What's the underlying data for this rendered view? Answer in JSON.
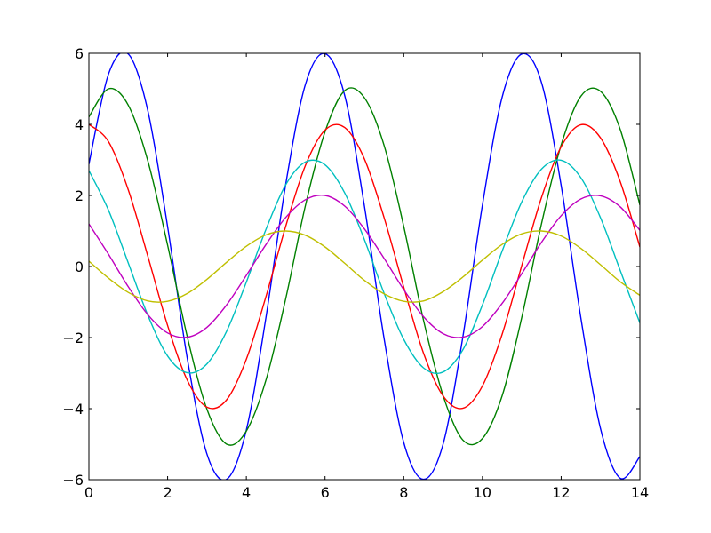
{
  "chart_data": {
    "type": "line",
    "title": "",
    "xlabel": "",
    "ylabel": "",
    "xlim": [
      0,
      14
    ],
    "ylim": [
      -6,
      6
    ],
    "xticks": [
      0,
      2,
      4,
      6,
      8,
      10,
      12,
      14
    ],
    "yticks": [
      -6,
      -4,
      -2,
      0,
      2,
      4,
      6
    ],
    "xtick_labels": [
      "0",
      "2",
      "4",
      "6",
      "8",
      "10",
      "12",
      "14"
    ],
    "ytick_labels": [
      "−6",
      "−4",
      "−2",
      "0",
      "2",
      "4",
      "6"
    ],
    "grid": false,
    "legend": "none",
    "series": [
      {
        "color": "#0000ff",
        "x": [
          0,
          0.5,
          1,
          1.5,
          2,
          2.5,
          3,
          3.5,
          4,
          4.5,
          5,
          5.5,
          6,
          6.5,
          7,
          7.5,
          8,
          8.5,
          9,
          9.5,
          10,
          10.5,
          11,
          11.5,
          12,
          12.5,
          13,
          13.5,
          14
        ],
        "y": [
          2.88,
          5.42,
          5.98,
          4.37,
          1.12,
          -2.59,
          -5.28,
          -5.99,
          -4.6,
          -1.42,
          2.31,
          5.12,
          5.99,
          4.81,
          1.71,
          -2.02,
          -4.95,
          -5.99,
          -5.0,
          -2.0,
          1.73,
          4.76,
          5.98,
          5.18,
          2.28,
          -1.44,
          -4.56,
          -5.96,
          -5.35
        ],
        "y_summary": {
          "min": -6.0,
          "max": 6.0
        }
      },
      {
        "color": "#008000",
        "x": [
          0,
          0.5,
          1,
          1.5,
          2,
          2.5,
          3,
          3.5,
          4,
          4.5,
          5,
          5.5,
          6,
          6.5,
          7,
          7.5,
          8,
          8.5,
          9,
          9.5,
          10,
          10.5,
          11,
          11.5,
          12,
          12.5,
          13,
          13.5,
          14
        ],
        "y": [
          4.21,
          5.0,
          4.54,
          2.96,
          0.6,
          -1.98,
          -4.02,
          -5.0,
          -4.63,
          -3.19,
          -0.91,
          1.71,
          3.79,
          4.95,
          4.75,
          3.41,
          1.13,
          -1.5,
          -3.63,
          -4.88,
          -4.84,
          -3.64,
          -1.43,
          1.2,
          3.42,
          4.79,
          4.93,
          3.86,
          1.73
        ],
        "y_summary": {
          "min": -5.0,
          "max": 5.0
        }
      },
      {
        "color": "#ff0000",
        "x": [
          0,
          0.5,
          1,
          1.5,
          2,
          2.5,
          3,
          3.5,
          4,
          4.5,
          5,
          5.5,
          6,
          6.5,
          7,
          7.5,
          8,
          8.5,
          9,
          9.5,
          10,
          10.5,
          11,
          11.5,
          12,
          12.5,
          13,
          13.5,
          14
        ],
        "y": [
          4.0,
          3.51,
          2.16,
          0.28,
          -1.66,
          -3.2,
          -3.96,
          -3.75,
          -2.61,
          -0.84,
          1.13,
          2.84,
          3.84,
          3.91,
          3.03,
          1.38,
          -0.58,
          -2.43,
          -3.64,
          -3.99,
          -3.36,
          -1.91,
          0.03,
          1.94,
          3.37,
          3.99,
          3.62,
          2.39,
          0.55
        ],
        "y_summary": {
          "min": -4.0,
          "max": 4.0
        }
      },
      {
        "color": "#00bfbf",
        "x": [
          0,
          0.5,
          1,
          1.5,
          2,
          2.5,
          3,
          3.5,
          4,
          4.5,
          5,
          5.5,
          6,
          6.5,
          7,
          7.5,
          8,
          8.5,
          9,
          9.5,
          10,
          10.5,
          11,
          11.5,
          12,
          12.5,
          13,
          13.5,
          14
        ],
        "y": [
          2.7,
          1.58,
          0.1,
          -1.38,
          -2.52,
          -2.99,
          -2.74,
          -1.82,
          -0.44,
          1.05,
          2.3,
          2.94,
          2.86,
          2.07,
          0.76,
          -0.75,
          -2.05,
          -2.85,
          -2.97,
          -2.35,
          -1.08,
          0.43,
          1.82,
          2.74,
          2.99,
          2.5,
          1.37,
          -0.11,
          -1.59
        ],
        "y_summary": {
          "min": -3.0,
          "max": 3.0
        }
      },
      {
        "color": "#bf00bf",
        "x": [
          0,
          0.5,
          1,
          1.5,
          2,
          2.5,
          3,
          3.5,
          4,
          4.5,
          5,
          5.5,
          6,
          6.5,
          7,
          7.5,
          8,
          8.5,
          9,
          9.5,
          10,
          10.5,
          11,
          11.5,
          12,
          12.5,
          13,
          13.5,
          14
        ],
        "y": [
          1.2,
          0.34,
          -0.57,
          -1.36,
          -1.87,
          -1.99,
          -1.71,
          -1.08,
          -0.25,
          0.62,
          1.38,
          1.88,
          2.0,
          1.7,
          1.06,
          0.23,
          -0.65,
          -1.41,
          -1.89,
          -1.99,
          -1.69,
          -1.04,
          -0.2,
          0.68,
          1.43,
          1.9,
          1.99,
          1.68,
          1.02
        ],
        "y_summary": {
          "min": -2.0,
          "max": 2.0
        }
      },
      {
        "color": "#bfbf00",
        "x": [
          0,
          0.5,
          1,
          1.5,
          2,
          2.5,
          3,
          3.5,
          4,
          4.5,
          5,
          5.5,
          6,
          6.5,
          7,
          7.5,
          8,
          8.5,
          9,
          9.5,
          10,
          10.5,
          11,
          11.5,
          12,
          12.5,
          13,
          13.5,
          14
        ],
        "y": [
          0.15,
          -0.33,
          -0.73,
          -0.97,
          -0.98,
          -0.76,
          -0.36,
          0.12,
          0.57,
          0.89,
          1.0,
          0.88,
          0.55,
          0.09,
          -0.39,
          -0.77,
          -0.98,
          -0.97,
          -0.71,
          -0.3,
          0.18,
          0.62,
          0.92,
          1.0,
          0.86,
          0.51,
          0.05,
          -0.43,
          -0.81
        ],
        "y_summary": {
          "min": -1.0,
          "max": 1.0
        }
      }
    ]
  }
}
